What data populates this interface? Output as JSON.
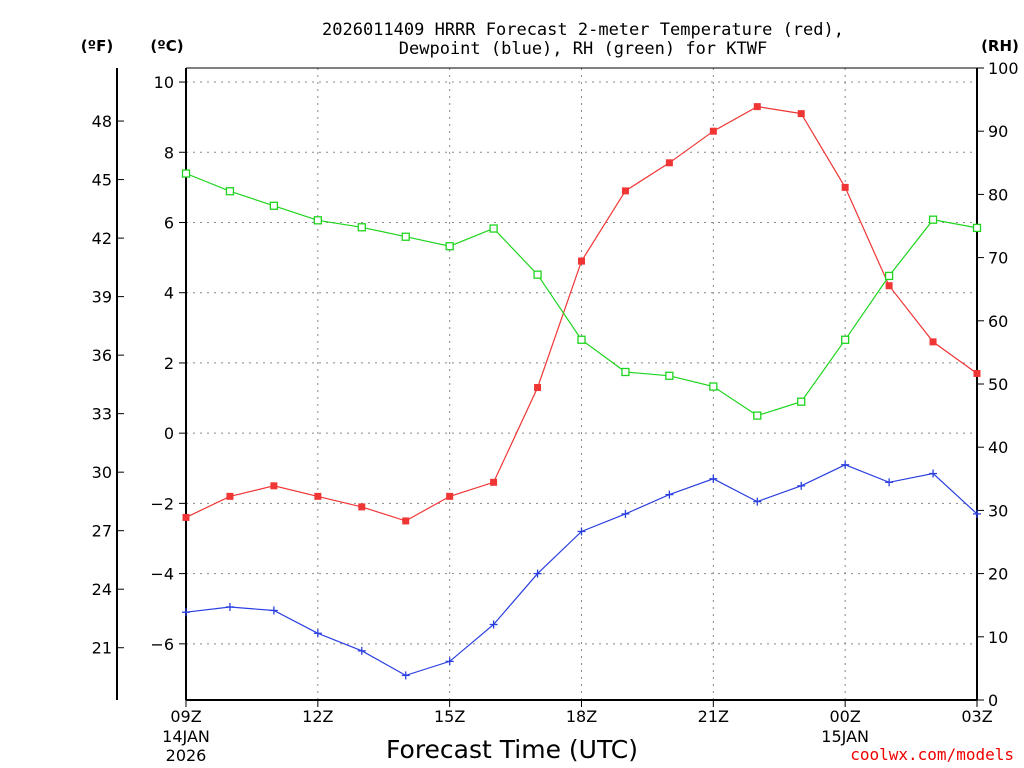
{
  "chart_data": {
    "type": "line",
    "title_line1": "2026011409 HRRR Forecast 2-meter Temperature (red),",
    "title_line2": "Dewpoint (blue), RH (green) for KTWF",
    "units": {
      "fahrenheit": "(ºF)",
      "celsius": "(ºC)",
      "rh": "(RH)"
    },
    "xlabel": "Forecast Time (UTC)",
    "credit": "coolwx.com/models",
    "x_hours": [
      0,
      1,
      2,
      3,
      4,
      5,
      6,
      7,
      8,
      9,
      10,
      11,
      12,
      13,
      14,
      15,
      16,
      17,
      18
    ],
    "x_ticks": [
      {
        "hour": 0,
        "label": "09Z",
        "sub1": "14JAN",
        "sub2": "2026"
      },
      {
        "hour": 3,
        "label": "12Z",
        "sub1": "",
        "sub2": ""
      },
      {
        "hour": 6,
        "label": "15Z",
        "sub1": "",
        "sub2": ""
      },
      {
        "hour": 9,
        "label": "18Z",
        "sub1": "",
        "sub2": ""
      },
      {
        "hour": 12,
        "label": "21Z",
        "sub1": "",
        "sub2": ""
      },
      {
        "hour": 15,
        "label": "00Z",
        "sub1": "15JAN",
        "sub2": ""
      },
      {
        "hour": 18,
        "label": "03Z",
        "sub1": "",
        "sub2": ""
      }
    ],
    "celsius_axis": {
      "range": [
        -7.6,
        10.4
      ],
      "ticks": [
        10,
        8,
        6,
        4,
        2,
        0,
        -2,
        -4,
        -6
      ],
      "tick_labels": [
        "10",
        "8",
        "6",
        "4",
        "2",
        "0",
        "−2",
        "−4",
        "−6"
      ]
    },
    "fahrenheit_axis": {
      "ticks": [
        48,
        45,
        42,
        39,
        36,
        33,
        30,
        27,
        24,
        21
      ],
      "tick_labels": [
        "48",
        "45",
        "42",
        "39",
        "36",
        "33",
        "30",
        "27",
        "24",
        "21"
      ]
    },
    "rh_axis": {
      "range": [
        0,
        100
      ],
      "ticks": [
        100,
        90,
        80,
        70,
        60,
        50,
        40,
        30,
        20,
        10,
        0
      ],
      "tick_labels": [
        "100",
        "90",
        "80",
        "70",
        "60",
        "50",
        "40",
        "30",
        "20",
        "10",
        "0"
      ]
    },
    "series": [
      {
        "name": "Temperature",
        "axis": "celsius",
        "color": "#f03535",
        "marker": "filled-square",
        "values": [
          -2.4,
          -1.8,
          -1.5,
          -1.8,
          -2.1,
          -2.5,
          -1.8,
          -1.4,
          1.3,
          4.9,
          6.9,
          7.7,
          8.6,
          9.3,
          9.1,
          7.0,
          4.2,
          2.6,
          1.7
        ]
      },
      {
        "name": "Dewpoint",
        "axis": "celsius",
        "color": "#2a3fe0",
        "marker": "plus",
        "values": [
          -5.1,
          -4.95,
          -5.05,
          -5.7,
          -6.2,
          -6.9,
          -6.5,
          -5.45,
          -4.0,
          -2.8,
          -2.3,
          -1.75,
          -1.3,
          -1.95,
          -1.5,
          -0.9,
          -1.4,
          -1.15,
          -2.3
        ]
      },
      {
        "name": "RH",
        "axis": "rh",
        "color": "#1ed41e",
        "marker": "open-square",
        "values": [
          83.3,
          80.5,
          78.2,
          75.9,
          74.8,
          73.3,
          71.8,
          74.6,
          67.3,
          57.0,
          51.9,
          51.3,
          49.6,
          45.0,
          47.2,
          57.0,
          67.1,
          76.0,
          74.7
        ]
      }
    ]
  }
}
